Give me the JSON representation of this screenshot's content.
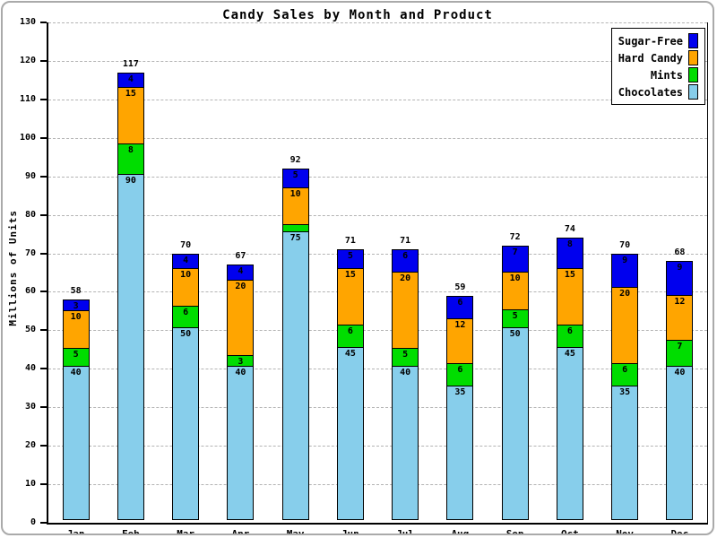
{
  "figure": {
    "title": "Candy Sales by Month and Product",
    "y_axis_label": "Millions of Units"
  },
  "y_axis": {
    "min": 0,
    "max": 130,
    "tick_step": 10,
    "ticks": [
      0,
      10,
      20,
      30,
      40,
      50,
      60,
      70,
      80,
      90,
      100,
      110,
      120,
      130
    ]
  },
  "legend": {
    "items": [
      "Sugar-Free",
      "Hard Candy",
      "Mints",
      "Chocolates"
    ]
  },
  "chart_data": {
    "type": "bar",
    "stacked": true,
    "title": "Candy Sales by Month and Product",
    "xlabel": "",
    "ylabel": "Millions of Units",
    "ylim": [
      0,
      130
    ],
    "grid": "horizontal-dashed",
    "legend_position": "top-right",
    "categories": [
      "Jan",
      "Feb",
      "Mar",
      "Apr",
      "May",
      "Jun",
      "Jul",
      "Aug",
      "Sep",
      "Oct",
      "Nov",
      "Dec"
    ],
    "series": [
      {
        "name": "Chocolates",
        "color": "#87CEEB",
        "values": [
          40,
          90,
          50,
          40,
          75,
          45,
          40,
          35,
          50,
          45,
          35,
          40
        ]
      },
      {
        "name": "Mints",
        "color": "#00DD00",
        "values": [
          5,
          8,
          6,
          3,
          2,
          6,
          5,
          6,
          5,
          6,
          6,
          7
        ]
      },
      {
        "name": "Hard Candy",
        "color": "#FFA500",
        "values": [
          10,
          15,
          10,
          20,
          10,
          15,
          20,
          12,
          10,
          15,
          20,
          12
        ]
      },
      {
        "name": "Sugar-Free",
        "color": "#0000EE",
        "values": [
          3,
          4,
          4,
          4,
          5,
          5,
          6,
          6,
          7,
          8,
          9,
          9
        ]
      }
    ],
    "totals": [
      58,
      117,
      70,
      67,
      92,
      71,
      71,
      59,
      72,
      74,
      70,
      68
    ],
    "segment_label_min_value": 3
  }
}
